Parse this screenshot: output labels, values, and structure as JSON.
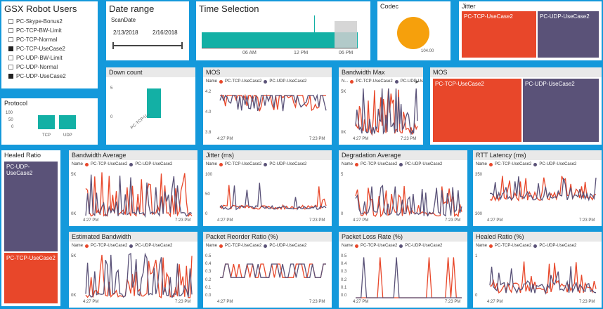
{
  "colors": {
    "background": "#1499db",
    "tcp": "#e8472a",
    "udp": "#5a5278",
    "teal": "#13b0a5",
    "orange": "#f6a00c"
  },
  "series_names": {
    "tcp": "PC-TCP-UseCase2",
    "udp": "PC-UDP-UseCase2"
  },
  "legend_name_label": "Name",
  "robots": {
    "title": "GSX Robot Users",
    "items": [
      {
        "label": "PC-Skype-Bonus2",
        "checked": false
      },
      {
        "label": "PC-TCP-BW-Limit",
        "checked": false
      },
      {
        "label": "PC-TCP-Normal",
        "checked": false
      },
      {
        "label": "PC-TCP-UseCase2",
        "checked": true
      },
      {
        "label": "PC-UDP-BW-Limit",
        "checked": false
      },
      {
        "label": "PC-UDP-Normal",
        "checked": false
      },
      {
        "label": "PC-UDP-UseCase2",
        "checked": true
      }
    ]
  },
  "date_range": {
    "title": "Date range",
    "field": "ScanDate",
    "start": "2/13/2018",
    "end": "2/16/2018"
  },
  "time_selection": {
    "title": "Time Selection",
    "ticks": [
      "06 AM",
      "12 PM",
      "06 PM"
    ]
  },
  "codec": {
    "title": "Codec",
    "value_label": "104.00"
  },
  "jitter_tm": {
    "title": "Jitter"
  },
  "protocol": {
    "title": "Protocol",
    "yticks": [
      "100",
      "50",
      "0"
    ],
    "categories": [
      "TCP",
      "UDP"
    ]
  },
  "down_count": {
    "title": "Down count",
    "yticks": [
      "5",
      "0"
    ],
    "category": "PC-TCP-U..."
  },
  "mos_tm": {
    "title": "MOS"
  },
  "healed_tm": {
    "title": "Healed Ratio"
  },
  "time_axis": {
    "start": "4:27 PM",
    "end": "7:23 PM"
  },
  "charts": [
    {
      "id": "mos",
      "title": "MOS",
      "yticks": [
        "4.2",
        "4.0",
        "3.8"
      ]
    },
    {
      "id": "bwmax",
      "title": "Bandwidth Max",
      "yticks": [
        "5K",
        "0K"
      ],
      "legend_name": "N..."
    },
    {
      "id": "bwavg",
      "title": "Bandwidth Average",
      "yticks": [
        "5K",
        "0K"
      ]
    },
    {
      "id": "jitter",
      "title": "Jitter (ms)",
      "yticks": [
        "100",
        "50",
        "0"
      ]
    },
    {
      "id": "degr",
      "title": "Degradation Average",
      "yticks": [
        "5",
        "0"
      ]
    },
    {
      "id": "rtt",
      "title": "RTT Latency (ms)",
      "yticks": [
        "350",
        "300"
      ]
    },
    {
      "id": "estbw",
      "title": "Estimated Bandwidth",
      "yticks": [
        "5K",
        "0K"
      ]
    },
    {
      "id": "reorder",
      "title": "Packet Reorder Ratio (%)",
      "yticks": [
        "0.5",
        "0.4",
        "0.3",
        "0.2",
        "0.1",
        "0.0"
      ]
    },
    {
      "id": "loss",
      "title": "Packet Loss Rate (%)",
      "yticks": [
        "0.5",
        "0.4",
        "0.3",
        "0.2",
        "0.1",
        "0.0"
      ]
    },
    {
      "id": "healed",
      "title": "Healed Ratio (%)",
      "yticks": [
        "1",
        "0"
      ]
    }
  ],
  "chart_data": [
    {
      "type": "bar",
      "title": "Protocol",
      "categories": [
        "TCP",
        "UDP"
      ],
      "values": [
        80,
        80
      ],
      "ylim": [
        0,
        100
      ]
    },
    {
      "type": "bar",
      "title": "Down count",
      "categories": [
        "PC-TCP-U..."
      ],
      "values": [
        5
      ],
      "ylim": [
        0,
        6
      ]
    },
    {
      "type": "pie",
      "title": "Codec",
      "labels": [
        "104.00"
      ],
      "values": [
        104
      ]
    }
  ]
}
